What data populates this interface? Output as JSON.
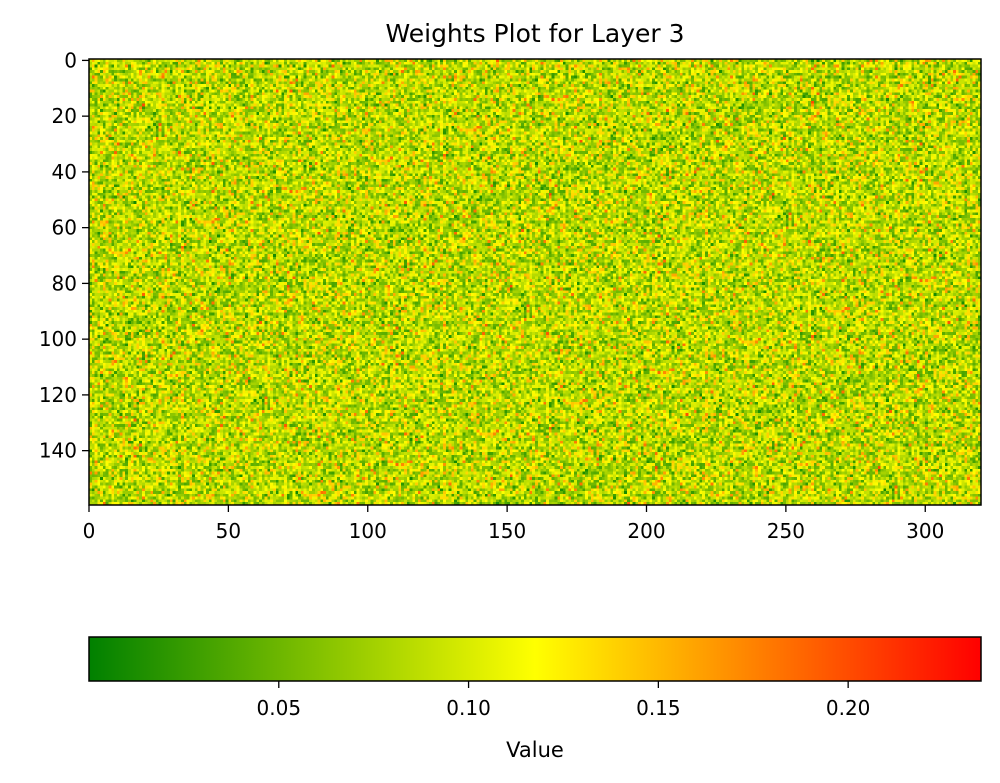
{
  "chart_data": {
    "type": "heatmap",
    "title": "Weights Plot for Layer 3",
    "rows": 160,
    "cols": 320,
    "x_ticks": [
      0,
      50,
      100,
      150,
      200,
      250,
      300
    ],
    "y_ticks": [
      0,
      20,
      40,
      60,
      80,
      100,
      120,
      140
    ],
    "xlim": [
      0,
      320
    ],
    "ylim": [
      160,
      0
    ],
    "value_range": [
      0.0,
      0.235
    ],
    "colormap": [
      {
        "value": 0.0,
        "color": "#008000"
      },
      {
        "value": 0.1175,
        "color": "#ffff00"
      },
      {
        "value": 0.235,
        "color": "#ff0000"
      }
    ],
    "colorbar": {
      "label": "Value",
      "orientation": "horizontal",
      "placement": "bottom",
      "ticks": [
        0.05,
        0.1,
        0.15,
        0.2
      ],
      "tick_labels": [
        "0.05",
        "0.10",
        "0.15",
        "0.20"
      ]
    },
    "grid": false
  }
}
